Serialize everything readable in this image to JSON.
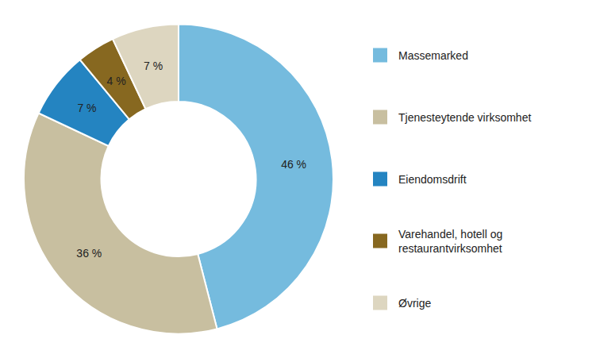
{
  "chart_data": {
    "type": "donut",
    "categories": [
      "Massemarked",
      "Tjenesteytende virksomhet",
      "Eiendomsdrift",
      "Varehandel, hotell og\nrestaurantvirksomhet",
      "Øvrige"
    ],
    "values": [
      46,
      36,
      7,
      4,
      7
    ],
    "value_labels": [
      "46 %",
      "36 %",
      "7 %",
      "4 %",
      "7 %"
    ],
    "colors": [
      "#75BBDE",
      "#C8BFA0",
      "#2484C1",
      "#876820",
      "#DDD6C0"
    ],
    "data_labels": true,
    "legend": "right"
  }
}
